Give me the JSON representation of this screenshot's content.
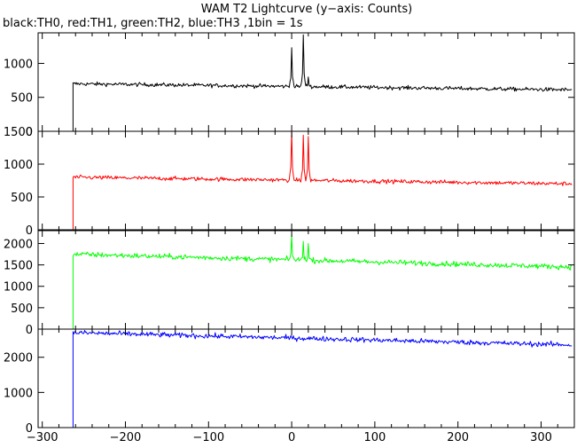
{
  "title": "WAM T2 Lightcurve (y−axis: Counts)",
  "subtitle": "black:TH0, red:TH1, green:TH2, blue:TH3 ,1bin = 1s",
  "chart_data": [
    {
      "type": "line",
      "series": [
        {
          "name": "TH0",
          "color": "#000000"
        }
      ],
      "xlim": [
        -305,
        340
      ],
      "ylim": [
        0,
        1450
      ],
      "yticks": [
        0,
        500,
        1000
      ],
      "step_x": -263,
      "baseline_before_step": 0,
      "level_start": 700,
      "level_end": 610,
      "noise": 28,
      "spikes": [
        {
          "x": 0,
          "y": 1230
        },
        {
          "x": 14,
          "y": 1420
        },
        {
          "x": 20,
          "y": 800
        }
      ]
    },
    {
      "type": "line",
      "series": [
        {
          "name": "TH1",
          "color": "#ff0000"
        }
      ],
      "xlim": [
        -305,
        340
      ],
      "ylim": [
        0,
        1500
      ],
      "yticks": [
        0,
        500,
        1000,
        1500
      ],
      "step_x": -263,
      "baseline_before_step": 0,
      "level_start": 800,
      "level_end": 700,
      "noise": 30,
      "spikes": [
        {
          "x": 0,
          "y": 1500
        },
        {
          "x": 14,
          "y": 1440
        },
        {
          "x": 20,
          "y": 1420
        }
      ]
    },
    {
      "type": "line",
      "series": [
        {
          "name": "TH2",
          "color": "#00ff00"
        }
      ],
      "xlim": [
        -305,
        340
      ],
      "ylim": [
        0,
        2300
      ],
      "yticks": [
        0,
        500,
        1000,
        1500,
        2000
      ],
      "step_x": -263,
      "baseline_before_step": 0,
      "level_start": 1750,
      "level_end": 1450,
      "noise": 60,
      "spikes": [
        {
          "x": 0,
          "y": 2200
        },
        {
          "x": 14,
          "y": 2050
        },
        {
          "x": 20,
          "y": 2000
        }
      ]
    },
    {
      "type": "line",
      "series": [
        {
          "name": "TH3",
          "color": "#0000ff"
        }
      ],
      "xlim": [
        -305,
        340
      ],
      "ylim": [
        0,
        2800
      ],
      "yticks": [
        0,
        1000,
        2000
      ],
      "step_x": -263,
      "baseline_before_step": 0,
      "level_start": 2700,
      "level_end": 2350,
      "noise": 70,
      "spikes": []
    }
  ],
  "xticks": [
    -300,
    -200,
    -100,
    0,
    100,
    200,
    300
  ],
  "xlim": [
    -305,
    340
  ],
  "colors": {
    "background": "#ffffff",
    "axis": "#000000"
  }
}
